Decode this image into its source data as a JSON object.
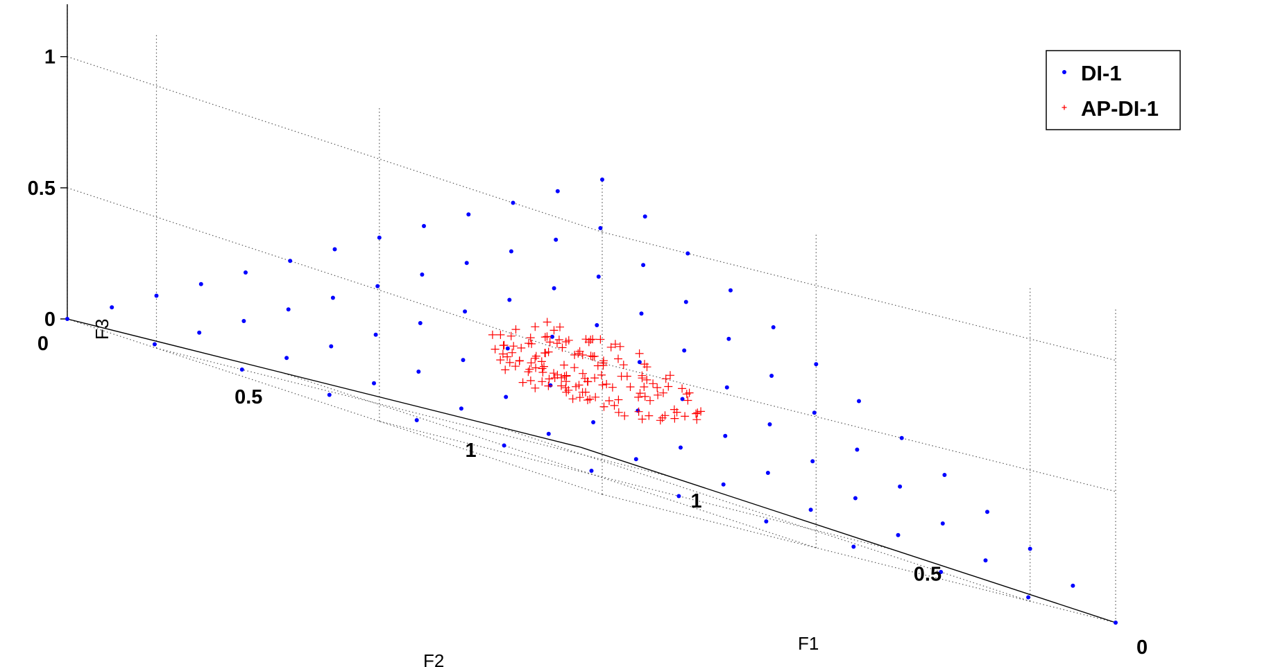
{
  "chart_data": {
    "type": "scatter",
    "dimensions": 3,
    "xlabel": "F1",
    "ylabel": "F2",
    "zlabel": "F3",
    "xlim": [
      0,
      1.2
    ],
    "ylim": [
      0,
      1.2
    ],
    "zlim": [
      0,
      1.2
    ],
    "xticks": [
      {
        "value": 0,
        "label": "0"
      },
      {
        "value": 0.5,
        "label": "0.5"
      },
      {
        "value": 1,
        "label": "1"
      }
    ],
    "yticks": [
      {
        "value": 0,
        "label": "0"
      },
      {
        "value": 0.5,
        "label": "0.5"
      },
      {
        "value": 1,
        "label": "1"
      }
    ],
    "zticks": [
      {
        "value": 0,
        "label": "0"
      },
      {
        "value": 0.5,
        "label": "0.5"
      },
      {
        "value": 1,
        "label": "1"
      }
    ],
    "grid": true,
    "legend_position": "top-right",
    "series": [
      {
        "name": "DI-1",
        "marker": "dot",
        "color": "#0000ff",
        "points_rule": "all (F1, F2, F3) with step 0.1 and F1+F2+F3 = 1.2, excluding (0.4, 0.4, 0.4)",
        "grid_step": 0.1,
        "sum": 1.2
      },
      {
        "name": "AP-DI-1",
        "marker": "plus",
        "color": "#ff0000",
        "points_rule": "approximately 150 points near the center of the DI-1 front, F1+F2+F3 = 1.2, each coordinate between 0.26 and 0.56"
      }
    ]
  }
}
